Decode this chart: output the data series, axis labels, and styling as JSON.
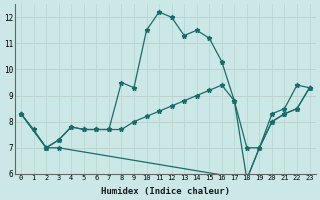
{
  "xlabel": "Humidex (Indice chaleur)",
  "background_color": "#cce8e6",
  "grid_color": "#b0d4d0",
  "line_color": "#1a6b6b",
  "xlim": [
    -0.5,
    23.5
  ],
  "ylim": [
    6,
    12.5
  ],
  "xticks": [
    0,
    1,
    2,
    3,
    4,
    5,
    6,
    7,
    8,
    9,
    10,
    11,
    12,
    13,
    14,
    15,
    16,
    17,
    18,
    19,
    20,
    21,
    22,
    23
  ],
  "yticks": [
    6,
    7,
    8,
    9,
    10,
    11,
    12
  ],
  "series": [
    {
      "x": [
        0,
        1,
        2,
        3,
        4,
        5,
        6,
        7,
        8,
        9,
        10,
        11,
        12,
        13,
        14,
        15,
        16,
        17,
        18,
        19,
        20,
        21,
        22,
        23
      ],
      "y": [
        8.3,
        7.7,
        7.0,
        7.3,
        7.8,
        7.7,
        7.7,
        7.7,
        9.5,
        9.3,
        11.5,
        12.2,
        12.0,
        11.3,
        11.5,
        11.2,
        10.3,
        8.8,
        7.0,
        7.0,
        8.3,
        8.5,
        9.4,
        9.3
      ]
    },
    {
      "x": [
        0,
        2,
        3,
        4,
        5,
        6,
        7,
        8,
        9,
        10,
        11,
        12,
        13,
        14,
        15,
        16,
        17,
        18,
        19,
        20,
        21,
        22,
        23
      ],
      "y": [
        8.3,
        7.0,
        7.3,
        7.8,
        7.7,
        7.7,
        7.7,
        7.7,
        8.0,
        8.2,
        8.4,
        8.6,
        8.8,
        9.0,
        9.2,
        9.4,
        8.8,
        5.8,
        7.0,
        8.0,
        8.3,
        8.5,
        9.3
      ]
    },
    {
      "x": [
        0,
        2,
        3,
        18,
        19,
        20,
        21,
        22,
        23
      ],
      "y": [
        8.3,
        7.0,
        7.0,
        5.8,
        7.0,
        8.0,
        8.3,
        8.5,
        9.3
      ]
    }
  ]
}
